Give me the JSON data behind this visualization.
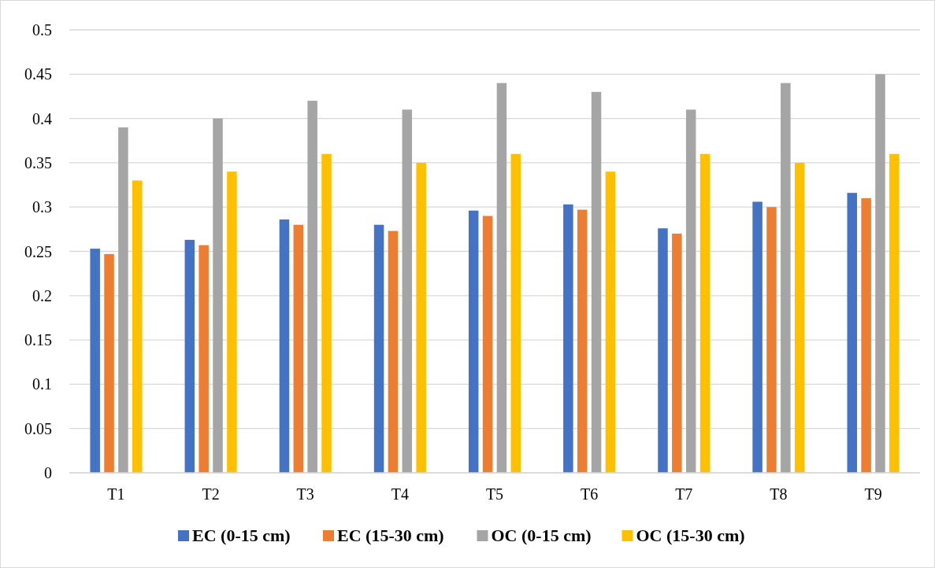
{
  "chart_data": {
    "type": "bar",
    "categories": [
      "T1",
      "T2",
      "T3",
      "T4",
      "T5",
      "T6",
      "T7",
      "T8",
      "T9"
    ],
    "series": [
      {
        "name": "EC (0-15 cm)",
        "color": "#4472c4",
        "values": [
          0.253,
          0.263,
          0.286,
          0.28,
          0.296,
          0.303,
          0.276,
          0.306,
          0.316
        ]
      },
      {
        "name": "EC (15-30 cm)",
        "color": "#ed7d31",
        "values": [
          0.247,
          0.257,
          0.28,
          0.273,
          0.29,
          0.297,
          0.27,
          0.3,
          0.31
        ]
      },
      {
        "name": "OC (0-15 cm)",
        "color": "#a5a5a5",
        "values": [
          0.39,
          0.4,
          0.42,
          0.41,
          0.44,
          0.43,
          0.41,
          0.44,
          0.45
        ]
      },
      {
        "name": "OC (15-30 cm)",
        "color": "#ffc000",
        "values": [
          0.33,
          0.34,
          0.36,
          0.35,
          0.36,
          0.34,
          0.36,
          0.35,
          0.36
        ]
      }
    ],
    "ylim": [
      0,
      0.5
    ],
    "yticks": [
      0,
      0.05,
      0.1,
      0.15,
      0.2,
      0.25,
      0.3,
      0.35,
      0.4,
      0.45,
      0.5
    ],
    "grid": "y",
    "legend": "bottom"
  }
}
